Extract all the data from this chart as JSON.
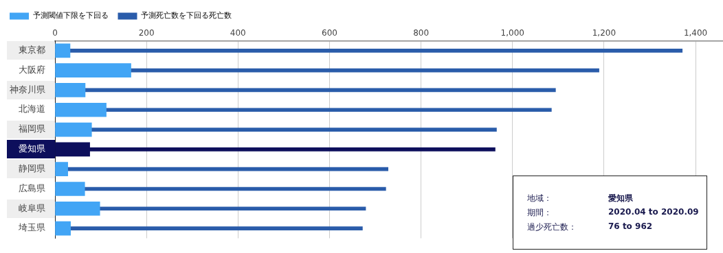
{
  "chart_data": {
    "type": "bar",
    "orientation": "horizontal",
    "categories": [
      "東京都",
      "大阪府",
      "神奈川県",
      "北海道",
      "福岡県",
      "愛知県",
      "静岡県",
      "広島県",
      "岐阜県",
      "埼玉県"
    ],
    "series": [
      {
        "name": "予測閾値下限を下回る",
        "color": "#42a5f5",
        "colors": [
          "#42a5f5",
          "#42a5f5",
          "#42a5f5",
          "#42a5f5",
          "#42a5f5",
          "#0d0f5c",
          "#42a5f5",
          "#42a5f5",
          "#42a5f5",
          "#42a5f5"
        ],
        "values": [
          33,
          166,
          66,
          112,
          80,
          76,
          28,
          65,
          98,
          34
        ]
      },
      {
        "name": "予測死亡数を下回る死亡数",
        "color": "#2a5caa",
        "colors": [
          "#2a5caa",
          "#2a5caa",
          "#2a5caa",
          "#2a5caa",
          "#2a5caa",
          "#0d0f5c",
          "#2a5caa",
          "#2a5caa",
          "#2a5caa",
          "#2a5caa"
        ],
        "values": [
          1371,
          1189,
          1094,
          1085,
          965,
          962,
          728,
          723,
          679,
          672
        ]
      }
    ],
    "xlim": [
      0,
      1460
    ],
    "xticks": [
      0,
      200,
      400,
      600,
      800,
      {
        "value": 1000,
        "label": "1,000"
      },
      {
        "value": 1200,
        "label": "1,200"
      },
      {
        "value": 1400,
        "label": "1,400"
      }
    ],
    "grid": "x",
    "legend": "top left",
    "annotations": [
      "地域：",
      "愛知県",
      "期間：",
      "2020.04 to 2020.09",
      "過少死亡数：",
      "76 to 962"
    ]
  }
}
